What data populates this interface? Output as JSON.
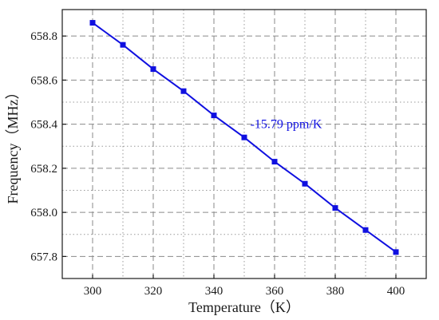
{
  "chart_data": {
    "type": "line",
    "xlabel": "Temperature（K）",
    "ylabel": "Frequency（MHz）",
    "xlim": [
      290,
      410
    ],
    "ylim": [
      657.7,
      658.92
    ],
    "xticks": [
      300,
      320,
      340,
      360,
      380,
      400
    ],
    "xtick_labels": [
      "300",
      "320",
      "340",
      "360",
      "380",
      "400"
    ],
    "yticks": [
      657.8,
      658.0,
      658.2,
      658.4,
      658.6,
      658.8
    ],
    "ytick_labels": [
      "657.8",
      "658.0",
      "658.2",
      "658.4",
      "658.6",
      "658.8"
    ],
    "grid": true,
    "series": [
      {
        "x": [
          300,
          310,
          320,
          330,
          340,
          350,
          360,
          370,
          380,
          390,
          400
        ],
        "y": [
          658.86,
          658.76,
          658.65,
          658.55,
          658.44,
          658.34,
          658.23,
          658.13,
          658.02,
          657.92,
          657.82
        ],
        "color": "#1010e0",
        "marker": "square"
      }
    ],
    "annotations": [
      {
        "text": "-15.79 ppm/K",
        "x": 352,
        "y": 658.4,
        "color": "#1010e0"
      }
    ]
  }
}
